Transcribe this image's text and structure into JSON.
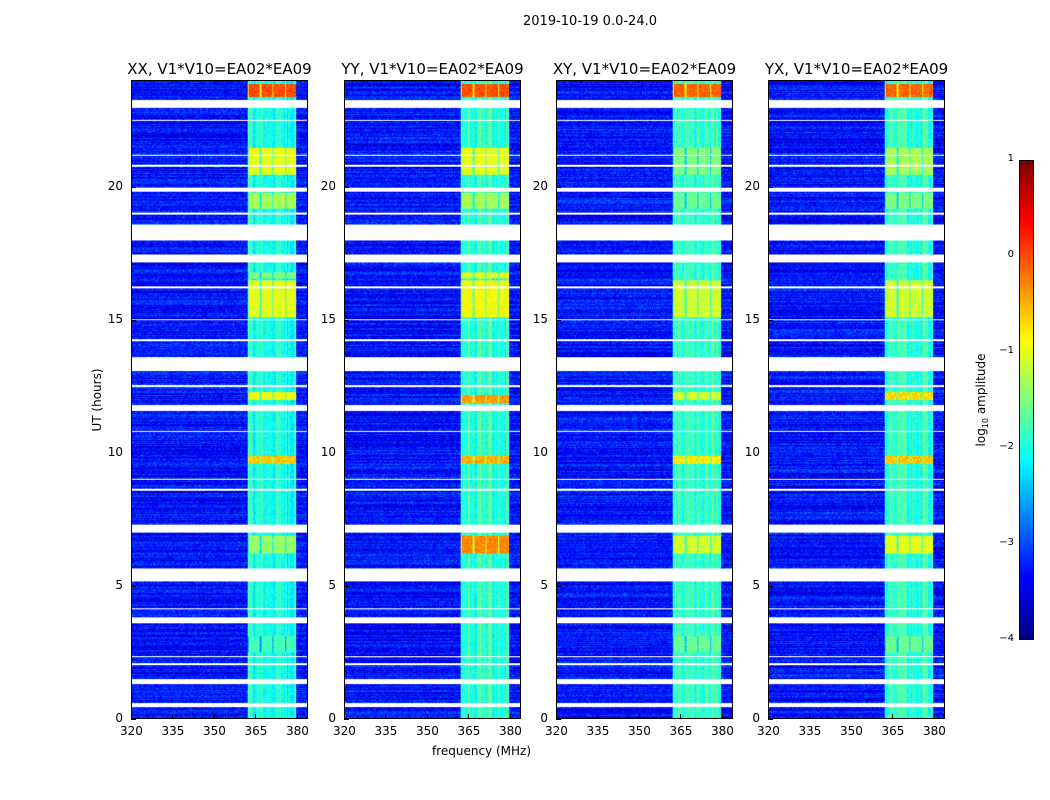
{
  "suptitle": "2019-10-19 0.0-24.0",
  "chart_data": {
    "type": "heatmap",
    "xlabel": "frequency (MHz)",
    "ylabel": "UT (hours)",
    "xlim": [
      320,
      384
    ],
    "ylim": [
      0,
      24
    ],
    "xticks": [
      "320",
      "335",
      "350",
      "365",
      "380"
    ],
    "xtick_values": [
      320,
      335,
      350,
      365,
      380
    ],
    "yticks": [
      "0",
      "5",
      "10",
      "15",
      "20"
    ],
    "ytick_values": [
      0,
      5,
      10,
      15,
      20
    ],
    "colorbar": {
      "label": "log10 amplitude",
      "label_main": "log",
      "label_sub": "10",
      "label_rest": " amplitude",
      "range": [
        -4,
        1
      ],
      "ticks": [
        "1",
        "0",
        "−1",
        "−2",
        "−3",
        "−4"
      ],
      "tick_values": [
        1,
        0,
        -1,
        -2,
        -3,
        -4
      ],
      "colormap": "jet"
    },
    "background_level": -3.3,
    "rfi_band_mhz": [
      362,
      380
    ],
    "flagged_hours": [
      [
        0.45,
        0.6
      ],
      [
        1.3,
        1.5
      ],
      [
        2.0,
        2.1
      ],
      [
        2.3,
        2.35
      ],
      [
        3.6,
        3.8
      ],
      [
        4.1,
        4.15
      ],
      [
        5.15,
        5.65
      ],
      [
        7.0,
        7.3
      ],
      [
        8.6,
        8.65
      ],
      [
        9.0,
        9.05
      ],
      [
        10.8,
        10.85
      ],
      [
        11.6,
        11.8
      ],
      [
        12.5,
        12.55
      ],
      [
        13.1,
        13.6
      ],
      [
        14.2,
        14.3
      ],
      [
        15.0,
        15.05
      ],
      [
        16.2,
        16.3
      ],
      [
        17.2,
        17.5
      ],
      [
        18.0,
        18.6
      ],
      [
        19.0,
        19.05
      ],
      [
        19.85,
        20.0
      ],
      [
        20.8,
        20.85
      ],
      [
        21.2,
        21.25
      ],
      [
        22.5,
        22.55
      ],
      [
        23.0,
        23.3
      ]
    ],
    "panels": [
      {
        "title": "XX, V1*V10=EA02*EA09",
        "band_level": -2.3,
        "bright": [
          [
            23.4,
            23.9,
            0.0
          ],
          [
            20.5,
            21.5,
            -1.0
          ],
          [
            19.2,
            19.8,
            -1.3
          ],
          [
            15.1,
            16.5,
            -1.0
          ],
          [
            16.6,
            16.8,
            -1.5
          ],
          [
            12.0,
            12.3,
            -0.9
          ],
          [
            9.6,
            9.9,
            -0.6
          ],
          [
            6.2,
            6.9,
            -1.4
          ],
          [
            2.5,
            3.1,
            -1.8
          ]
        ]
      },
      {
        "title": "YY, V1*V10=EA02*EA09",
        "band_level": -2.2,
        "bright": [
          [
            23.4,
            23.9,
            0.0
          ],
          [
            20.5,
            21.5,
            -1.0
          ],
          [
            19.2,
            19.8,
            -1.3
          ],
          [
            15.1,
            16.5,
            -0.9
          ],
          [
            16.6,
            16.8,
            -1.0
          ],
          [
            11.9,
            12.2,
            -0.4
          ],
          [
            9.6,
            9.9,
            -0.5
          ],
          [
            6.2,
            6.9,
            -0.3
          ],
          [
            3.7,
            3.8,
            -0.5
          ]
        ]
      },
      {
        "title": "XY, V1*V10=EA02*EA09",
        "band_level": -2.2,
        "bright": [
          [
            23.4,
            23.9,
            -0.1
          ],
          [
            20.5,
            21.5,
            -1.5
          ],
          [
            19.2,
            19.8,
            -1.6
          ],
          [
            15.1,
            16.5,
            -1.1
          ],
          [
            12.0,
            12.3,
            -1.1
          ],
          [
            9.6,
            9.9,
            -0.8
          ],
          [
            6.2,
            6.9,
            -1.1
          ],
          [
            2.5,
            3.1,
            -1.6
          ]
        ]
      },
      {
        "title": "YX, V1*V10=EA02*EA09",
        "band_level": -2.2,
        "bright": [
          [
            23.4,
            23.9,
            -0.1
          ],
          [
            20.5,
            21.5,
            -1.3
          ],
          [
            19.2,
            19.8,
            -1.5
          ],
          [
            15.1,
            16.5,
            -1.1
          ],
          [
            12.0,
            12.3,
            -0.7
          ],
          [
            9.6,
            9.9,
            -0.6
          ],
          [
            6.2,
            6.9,
            -1.0
          ],
          [
            3.7,
            3.8,
            -0.5
          ],
          [
            2.5,
            3.1,
            -1.6
          ]
        ]
      }
    ]
  }
}
